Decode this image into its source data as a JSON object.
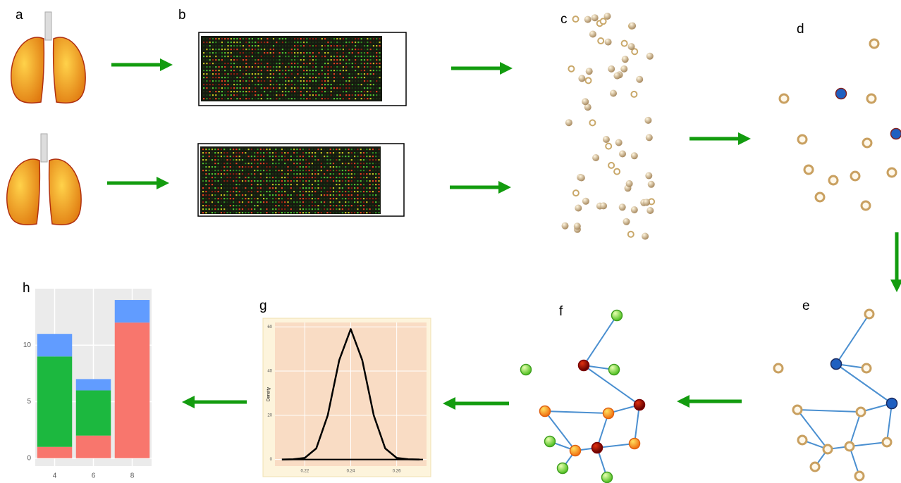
{
  "panel_labels": {
    "a": "a",
    "b": "b",
    "c": "c",
    "d": "d",
    "e": "e",
    "f": "f",
    "g": "g",
    "h": "h"
  },
  "chart_data": [
    {
      "type": "stacked-bar",
      "categories": [
        "4",
        "6",
        "8"
      ],
      "series": [
        {
          "color": "#f8766d",
          "values": [
            1,
            2,
            12
          ]
        },
        {
          "color": "#1cb83f",
          "values": [
            8,
            4,
            0
          ]
        },
        {
          "color": "#619cff",
          "values": [
            2,
            1,
            2
          ]
        }
      ],
      "ylim": [
        -0.7,
        15
      ],
      "yticks": [
        0,
        5,
        10
      ],
      "grid": true
    },
    {
      "type": "line",
      "y_label": "Density",
      "x": [
        0.21,
        0.215,
        0.22,
        0.225,
        0.23,
        0.235,
        0.24,
        0.245,
        0.25,
        0.255,
        0.26,
        0.265,
        0.27
      ],
      "values": [
        0,
        0.1,
        0.7,
        5,
        20,
        45,
        59,
        45,
        20,
        5,
        0.7,
        0.1,
        0
      ],
      "color": "#000000",
      "xlim": [
        0.207,
        0.273
      ],
      "ylim": [
        -3,
        62
      ],
      "xticks": [
        0.22,
        0.24,
        0.26
      ],
      "yticks": [
        0,
        20,
        40,
        60
      ],
      "grid": true
    }
  ]
}
